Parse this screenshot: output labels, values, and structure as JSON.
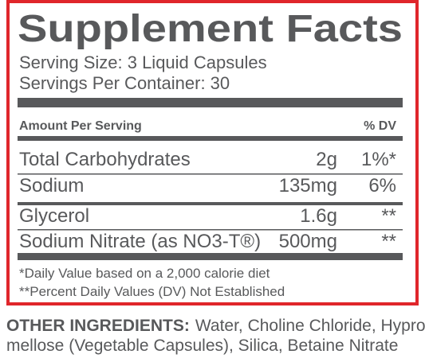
{
  "title": "Supplement Facts",
  "serving": [
    "Serving Size: 3 Liquid Capsules",
    "Servings Per Container: 30"
  ],
  "header": {
    "amount": "Amount Per Serving",
    "dv": "% DV"
  },
  "rows": [
    [
      "Total Carbohydrates",
      "2g",
      "1%*"
    ],
    [
      "Sodium",
      "135mg",
      "6%"
    ],
    [
      "Glycerol",
      "1.6g",
      "**"
    ],
    [
      "Sodium Nitrate (as NO3-T®)",
      "500mg",
      "**"
    ]
  ],
  "footnotes": [
    "*Daily Value based on a 2,000 calorie diet",
    "**Percent Daily Values (DV) Not Established"
  ],
  "other": {
    "label": "OTHER INGREDIENTS:",
    "lines": [
      "Water, Choline Chloride, Hypro-",
      "mellose (Vegetable Capsules), Silica, Betaine Nitrate"
    ]
  }
}
